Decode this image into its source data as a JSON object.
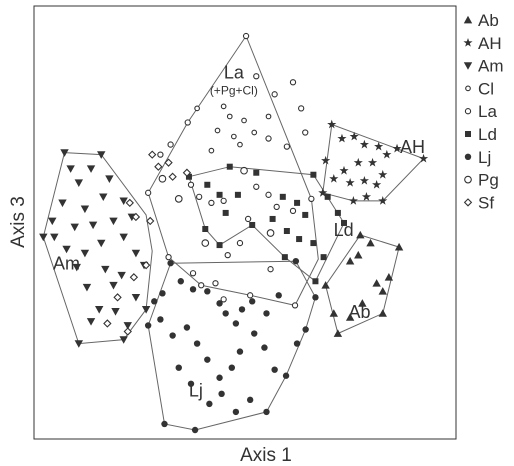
{
  "chart_data": {
    "type": "scatter",
    "title": "",
    "xlabel": "Axis 1",
    "ylabel": "Axis 3",
    "xlim": [
      0,
      100
    ],
    "ylim": [
      0,
      100
    ],
    "grid": false,
    "legend_position": "right",
    "legend": [
      {
        "label": "Ab",
        "marker": "triangle-up"
      },
      {
        "label": "AH",
        "marker": "star"
      },
      {
        "label": "Am",
        "marker": "triangle-down"
      },
      {
        "label": "Cl",
        "marker": "circle-open-small"
      },
      {
        "label": "La",
        "marker": "circle-open"
      },
      {
        "label": "Ld",
        "marker": "square"
      },
      {
        "label": "Lj",
        "marker": "circle-filled"
      },
      {
        "label": "Pg",
        "marker": "circle-open-large"
      },
      {
        "label": "Sf",
        "marker": "diamond-open"
      }
    ],
    "group_labels": [
      {
        "series": "La",
        "text": "La",
        "subtext": "(+Pg+Cl)",
        "x": 48,
        "y": 87.5
      },
      {
        "series": "AH",
        "text": "AH",
        "x": 91.8,
        "y": 68.9
      },
      {
        "series": "Ld",
        "text": "Ld",
        "x": 74.9,
        "y": 48.2
      },
      {
        "series": "Am",
        "text": "Am",
        "x": 7,
        "y": 39.9
      },
      {
        "series": "Ab",
        "text": "Ab",
        "x": 78.8,
        "y": 27.9
      },
      {
        "series": "Lj",
        "text": "Lj",
        "x": 38.7,
        "y": 8.3
      }
    ],
    "hulls": [
      {
        "series": "La",
        "points": [
          [
            51,
            98
          ],
          [
            67,
            57.5
          ],
          [
            68.7,
            42.5
          ],
          [
            63,
            31
          ],
          [
            52,
            33.5
          ],
          [
            40,
            36
          ],
          [
            32,
            43
          ],
          [
            27,
            59
          ],
          [
            36.7,
            76.5
          ]
        ]
      },
      {
        "series": "AH",
        "points": [
          [
            72,
            76
          ],
          [
            94.5,
            67.5
          ],
          [
            84.5,
            57
          ],
          [
            77.3,
            57
          ],
          [
            69.8,
            59
          ]
        ]
      },
      {
        "series": "Ld",
        "points": [
          [
            47,
            65.5
          ],
          [
            67.5,
            63.5
          ],
          [
            75,
            51.5
          ],
          [
            68,
            37
          ],
          [
            60.5,
            43
          ],
          [
            52.5,
            51
          ],
          [
            44.5,
            46
          ],
          [
            41,
            50
          ],
          [
            37,
            63
          ]
        ]
      },
      {
        "series": "Am",
        "points": [
          [
            6.5,
            69
          ],
          [
            15.5,
            68.5
          ],
          [
            26.5,
            53.5
          ],
          [
            28,
            44.5
          ],
          [
            26.5,
            30
          ],
          [
            21,
            22.5
          ],
          [
            10,
            21.5
          ],
          [
            1.3,
            48
          ]
        ]
      },
      {
        "series": "Ab",
        "points": [
          [
            79,
            48.5
          ],
          [
            88.5,
            45.5
          ],
          [
            84.5,
            29
          ],
          [
            73.5,
            24
          ],
          [
            70.5,
            36
          ]
        ]
      },
      {
        "series": "Lj",
        "points": [
          [
            32.5,
            41.5
          ],
          [
            63.2,
            42
          ],
          [
            68,
            33
          ],
          [
            65.6,
            25
          ],
          [
            60.8,
            13.5
          ],
          [
            56,
            4.5
          ],
          [
            38.5,
            0
          ],
          [
            31,
            1.5
          ],
          [
            27,
            26
          ]
        ]
      }
    ],
    "series": [
      {
        "name": "Ab",
        "marker": "triangle-up",
        "points": [
          [
            79,
            48.5
          ],
          [
            81.5,
            46.5
          ],
          [
            88.5,
            45.5
          ],
          [
            76.5,
            42
          ],
          [
            78.5,
            43.5
          ],
          [
            84.5,
            34.5
          ],
          [
            83,
            36.5
          ],
          [
            86,
            38
          ],
          [
            70.5,
            36
          ],
          [
            72.5,
            29
          ],
          [
            84.5,
            29
          ],
          [
            73.5,
            24
          ],
          [
            76.5,
            28
          ],
          [
            79.5,
            31.5
          ]
        ]
      },
      {
        "name": "AH",
        "marker": "star",
        "points": [
          [
            72,
            76
          ],
          [
            74.5,
            72.5
          ],
          [
            77.5,
            73
          ],
          [
            80,
            71
          ],
          [
            83.5,
            70.5
          ],
          [
            85.5,
            68.5
          ],
          [
            88,
            70
          ],
          [
            94.5,
            67.5
          ],
          [
            70.5,
            67
          ],
          [
            75,
            64.5
          ],
          [
            78.5,
            66.5
          ],
          [
            82,
            66.5
          ],
          [
            84.5,
            63.5
          ],
          [
            72.5,
            62.5
          ],
          [
            76.5,
            61.5
          ],
          [
            80,
            62
          ],
          [
            83,
            61
          ],
          [
            84.5,
            57
          ],
          [
            77.3,
            57
          ],
          [
            80.5,
            58
          ],
          [
            69.8,
            59
          ]
        ]
      },
      {
        "name": "Am",
        "marker": "triangle-down",
        "points": [
          [
            6.5,
            69
          ],
          [
            15.5,
            68.5
          ],
          [
            8,
            65
          ],
          [
            13,
            65
          ],
          [
            17.5,
            62.5
          ],
          [
            10,
            61.5
          ],
          [
            6,
            56.5
          ],
          [
            11.5,
            55
          ],
          [
            16,
            58
          ],
          [
            21,
            57
          ],
          [
            23,
            53
          ],
          [
            18.5,
            52
          ],
          [
            13.5,
            51
          ],
          [
            9,
            50.5
          ],
          [
            4,
            48
          ],
          [
            1.3,
            48
          ],
          [
            3.5,
            52
          ],
          [
            7,
            45
          ],
          [
            11.5,
            44
          ],
          [
            15.5,
            46.5
          ],
          [
            21,
            48
          ],
          [
            24,
            44
          ],
          [
            26.5,
            30
          ],
          [
            22,
            26
          ],
          [
            24,
            33
          ],
          [
            19,
            29.5
          ],
          [
            15,
            30
          ],
          [
            13,
            27
          ],
          [
            10,
            21.5
          ],
          [
            21,
            22.5
          ],
          [
            18.5,
            36
          ],
          [
            16.5,
            40
          ],
          [
            20.5,
            38.5
          ],
          [
            12,
            35.5
          ],
          [
            9.5,
            40.5
          ],
          [
            26,
            41
          ]
        ]
      },
      {
        "name": "Cl",
        "marker": "circle-open-small",
        "points": [
          [
            39,
            80
          ],
          [
            45.5,
            80.5
          ],
          [
            47,
            78
          ],
          [
            44,
            74.5
          ],
          [
            50.5,
            77
          ],
          [
            48,
            73
          ],
          [
            53,
            74
          ],
          [
            56.5,
            78
          ],
          [
            42.5,
            69.5
          ],
          [
            49.5,
            71
          ]
        ]
      },
      {
        "name": "La",
        "marker": "circle-open",
        "points": [
          [
            51,
            98
          ],
          [
            53.5,
            88
          ],
          [
            62.5,
            86.5
          ],
          [
            58,
            83.5
          ],
          [
            64.5,
            80
          ],
          [
            56.5,
            72.5
          ],
          [
            61,
            70.5
          ],
          [
            65.5,
            74
          ],
          [
            36.7,
            76.5
          ],
          [
            30,
            68.5
          ],
          [
            32.5,
            71
          ],
          [
            37.5,
            61
          ],
          [
            39.5,
            58
          ],
          [
            42.5,
            56.5
          ],
          [
            45.5,
            57
          ],
          [
            53.5,
            60.5
          ],
          [
            56.5,
            58.5
          ],
          [
            58.5,
            55.5
          ],
          [
            62.5,
            54.5
          ],
          [
            51.5,
            52.5
          ],
          [
            49.5,
            46.5
          ],
          [
            46.5,
            43.5
          ],
          [
            57,
            40
          ],
          [
            43.5,
            36.5
          ],
          [
            52,
            33.5
          ],
          [
            40,
            36
          ],
          [
            45.5,
            32.5
          ],
          [
            38,
            39
          ],
          [
            32,
            43
          ],
          [
            27,
            59
          ],
          [
            67,
            57.5
          ],
          [
            63,
            31
          ]
        ]
      },
      {
        "name": "Ld",
        "marker": "square",
        "points": [
          [
            47,
            65.5
          ],
          [
            53.5,
            64
          ],
          [
            67.5,
            63.5
          ],
          [
            41.5,
            61
          ],
          [
            44.5,
            58.5
          ],
          [
            49,
            58.5
          ],
          [
            60,
            58
          ],
          [
            63.5,
            56.5
          ],
          [
            65.5,
            53.5
          ],
          [
            71,
            58
          ],
          [
            73.5,
            54
          ],
          [
            75,
            51.5
          ],
          [
            57.5,
            52.5
          ],
          [
            61,
            49.5
          ],
          [
            64,
            47.5
          ],
          [
            67.5,
            46.5
          ],
          [
            60.5,
            43
          ],
          [
            52.5,
            51
          ],
          [
            44.5,
            46
          ],
          [
            41,
            50
          ],
          [
            37,
            63
          ],
          [
            46,
            54
          ],
          [
            68,
            37
          ],
          [
            70,
            43
          ]
        ]
      },
      {
        "name": "Lj",
        "marker": "circle-filled",
        "points": [
          [
            32.5,
            41.5
          ],
          [
            35,
            37
          ],
          [
            38,
            35
          ],
          [
            41.5,
            34.5
          ],
          [
            44.5,
            31.5
          ],
          [
            46,
            29
          ],
          [
            48.5,
            26.5
          ],
          [
            50,
            30
          ],
          [
            52.5,
            32
          ],
          [
            56,
            29
          ],
          [
            59,
            33.5
          ],
          [
            63.2,
            42
          ],
          [
            68,
            33
          ],
          [
            65.6,
            25
          ],
          [
            63.5,
            21.5
          ],
          [
            60.8,
            13.5
          ],
          [
            58,
            15
          ],
          [
            55.5,
            20.5
          ],
          [
            53,
            24
          ],
          [
            49.5,
            19.5
          ],
          [
            47.5,
            15.5
          ],
          [
            44.5,
            13
          ],
          [
            41.5,
            17.5
          ],
          [
            39,
            21.5
          ],
          [
            36.5,
            25.5
          ],
          [
            33,
            23.5
          ],
          [
            30,
            27.5
          ],
          [
            27,
            26
          ],
          [
            28.5,
            32
          ],
          [
            30.5,
            34
          ],
          [
            34.5,
            15.5
          ],
          [
            37.5,
            11.5
          ],
          [
            42,
            6.5
          ],
          [
            45,
            9
          ],
          [
            48.5,
            4.5
          ],
          [
            52,
            7.5
          ],
          [
            56,
            4.5
          ],
          [
            38.5,
            0
          ],
          [
            31,
            1.5
          ]
        ]
      },
      {
        "name": "Pg",
        "marker": "circle-open-large",
        "points": [
          [
            30.5,
            62.5
          ],
          [
            34.5,
            57.5
          ],
          [
            41,
            46.5
          ],
          [
            50.5,
            64.5
          ],
          [
            57,
            49
          ]
        ]
      },
      {
        "name": "Sf",
        "marker": "diamond-open",
        "points": [
          [
            28,
            68.5
          ],
          [
            32,
            66.5
          ],
          [
            29.5,
            65.5
          ],
          [
            36.5,
            64
          ],
          [
            33,
            63
          ],
          [
            22.5,
            56.5
          ],
          [
            24,
            53
          ],
          [
            27.5,
            52
          ],
          [
            26.5,
            41
          ],
          [
            23.5,
            38
          ],
          [
            19.5,
            33
          ],
          [
            17,
            26.5
          ],
          [
            22,
            24.5
          ]
        ]
      }
    ]
  }
}
